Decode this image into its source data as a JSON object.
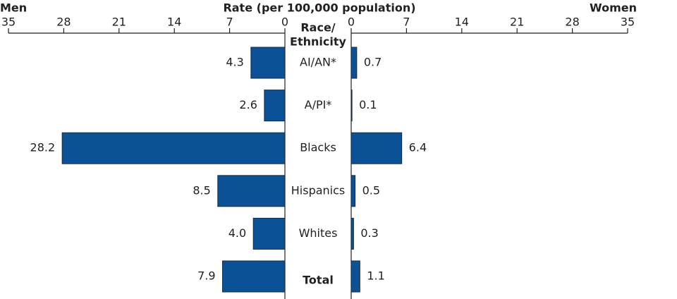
{
  "chart_data": {
    "type": "butterfly",
    "title": "Rate (per 100,000 population)",
    "category_axis_label": [
      "Race/",
      "Ethnicity"
    ],
    "categories": [
      "AI/AN*",
      "A/PI*",
      "Blacks",
      "Hispanics",
      "Whites",
      "Total"
    ],
    "series": [
      {
        "name": "Men",
        "color": "#0a5196",
        "values": [
          4.3,
          2.6,
          28.2,
          8.5,
          4.0,
          7.9
        ],
        "value_labels": [
          "4.3",
          "2.6",
          "28.2",
          "8.5",
          "4.0",
          "7.9"
        ]
      },
      {
        "name": "Women",
        "color": "#0a5196",
        "values": [
          0.7,
          0.1,
          6.4,
          0.5,
          0.3,
          1.1
        ],
        "value_labels": [
          "0.7",
          "0.1",
          "6.4",
          "0.5",
          "0.3",
          "1.1"
        ]
      }
    ],
    "xlim": [
      0,
      35
    ],
    "xticks": [
      0,
      7,
      14,
      21,
      28,
      35
    ]
  }
}
